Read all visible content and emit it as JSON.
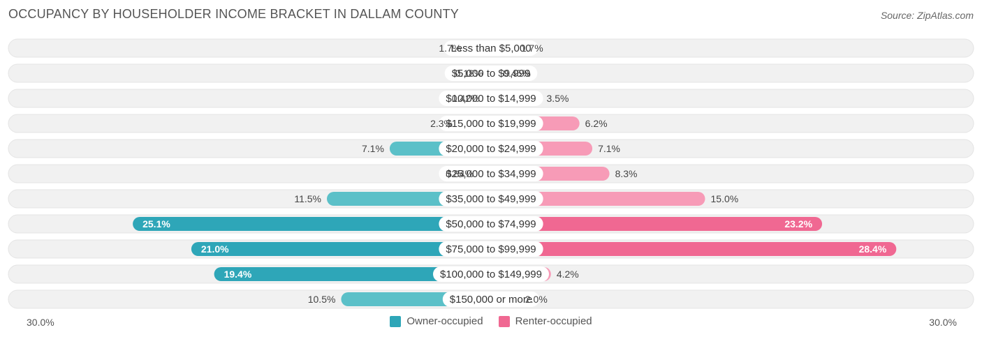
{
  "header": {
    "title": "OCCUPANCY BY HOUSEHOLDER INCOME BRACKET IN DALLAM COUNTY",
    "source": "Source: ZipAtlas.com"
  },
  "colors": {
    "owner": "#5bc0c8",
    "owner_strong": "#2ea6b8",
    "renter": "#f79bb7",
    "renter_strong": "#f06892",
    "track": "#f1f1f1"
  },
  "chart_data": {
    "type": "bar",
    "orientation": "horizontal-diverging",
    "categories": [
      "Less than $5,000",
      "$5,000 to $9,999",
      "$10,000 to $14,999",
      "$15,000 to $19,999",
      "$20,000 to $24,999",
      "$25,000 to $34,999",
      "$35,000 to $49,999",
      "$50,000 to $74,999",
      "$75,000 to $99,999",
      "$100,000 to $149,999",
      "$150,000 or more"
    ],
    "series": [
      {
        "name": "Owner-occupied",
        "values": [
          1.7,
          0.18,
          0.42,
          2.3,
          7.1,
          0.84,
          11.5,
          25.1,
          21.0,
          19.4,
          10.5
        ],
        "labels": [
          "1.7%",
          "0.18%",
          "0.42%",
          "2.3%",
          "7.1%",
          "0.84%",
          "11.5%",
          "25.1%",
          "21.0%",
          "19.4%",
          "10.5%"
        ]
      },
      {
        "name": "Renter-occupied",
        "values": [
          1.7,
          0.45,
          3.5,
          6.2,
          7.1,
          8.3,
          15.0,
          23.2,
          28.4,
          4.2,
          2.0
        ],
        "labels": [
          "1.7%",
          "0.45%",
          "3.5%",
          "6.2%",
          "7.1%",
          "8.3%",
          "15.0%",
          "23.2%",
          "28.4%",
          "4.2%",
          "2.0%"
        ]
      }
    ],
    "xlim": [
      -30,
      30
    ],
    "axis_min_label": "30.0%",
    "axis_max_label": "30.0%",
    "legend_position": "bottom-center"
  }
}
